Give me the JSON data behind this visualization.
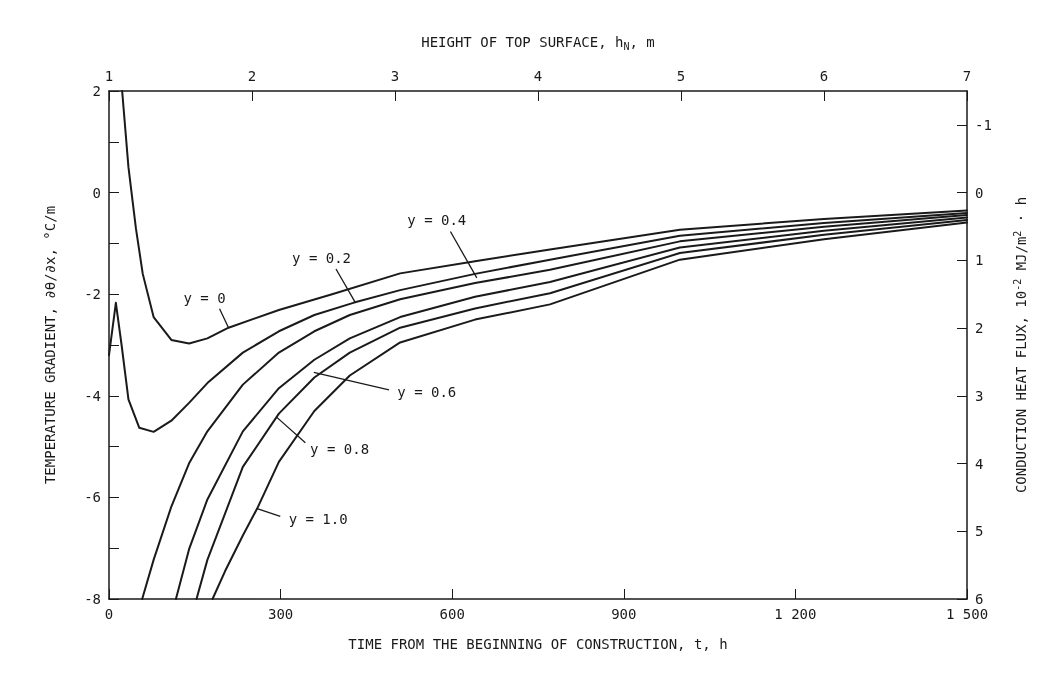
{
  "chart_data": {
    "type": "line",
    "xlabel": "TIME FROM THE BEGINNING OF CONSTRUCTION, t, h",
    "x2label": "HEIGHT OF TOP SURFACE, h$_{N}$, m",
    "ylabel": "TEMPERATURE GRADIENT, ∂θ/∂x, °C/m",
    "y2label": "CONDUCTION HEAT FLUX, 10$^{-2}$ MJ/m$^{2}$ · h",
    "xlim": [
      0,
      1500
    ],
    "xticks": [
      0,
      300,
      600,
      900,
      {
        "value": 1200,
        "label": "1 200"
      },
      {
        "value": 1500,
        "label": "1 500"
      }
    ],
    "x2lim": [
      1,
      7
    ],
    "x2ticks": [
      1,
      2,
      3,
      4,
      5,
      6,
      7
    ],
    "ylim": [
      -8,
      2
    ],
    "yticks": [
      -8,
      {
        "value": -7,
        "label": null
      },
      -6,
      {
        "value": -5,
        "label": null
      },
      -4,
      {
        "value": -3,
        "label": null
      },
      -2,
      {
        "value": -1,
        "label": null
      },
      0,
      {
        "value": 1,
        "label": null
      },
      2
    ],
    "y2lim": [
      6,
      -1.5
    ],
    "y2ticks": [
      -1,
      0,
      1,
      2,
      3,
      4,
      5,
      6
    ],
    "grid": false,
    "marker": "none",
    "line_style": "solid",
    "series": [
      {
        "color": "#1a1a1a",
        "x": [
          23,
          34,
          47,
          59,
          78,
          109,
          140,
          172,
          209,
          297,
          390,
          509,
          640,
          771,
          998,
          1250,
          1500
        ],
        "values": [
          2,
          0.5,
          -0.7,
          -1.6,
          -2.45,
          -2.9,
          -2.97,
          -2.87,
          -2.66,
          -2.31,
          -2.0,
          -1.59,
          -1.35,
          -1.12,
          -0.73,
          -0.52,
          -0.35
        ]
      },
      {
        "color": "#1a1a1a",
        "x": [
          0,
          12,
          22,
          34,
          53,
          78,
          109,
          140,
          172,
          234,
          297,
          359,
          427,
          509,
          640,
          771,
          998,
          1250,
          1500
        ],
        "values": [
          -3.2,
          -2.17,
          -3.0,
          -4.07,
          -4.63,
          -4.71,
          -4.49,
          -4.14,
          -3.75,
          -3.15,
          -2.73,
          -2.41,
          -2.17,
          -1.92,
          -1.6,
          -1.32,
          -0.85,
          -0.6,
          -0.4
        ]
      },
      {
        "color": "#1a1a1a",
        "x": [
          58,
          78,
          109,
          140,
          172,
          234,
          297,
          359,
          421,
          509,
          640,
          771,
          998,
          1250,
          1500
        ],
        "values": [
          -8,
          -7.23,
          -6.18,
          -5.33,
          -4.7,
          -3.78,
          -3.15,
          -2.73,
          -2.41,
          -2.1,
          -1.78,
          -1.52,
          -0.96,
          -0.67,
          -0.44
        ]
      },
      {
        "color": "#1a1a1a",
        "x": [
          117,
          140,
          172,
          234,
          297,
          359,
          421,
          509,
          640,
          771,
          998,
          1250,
          1500
        ],
        "values": [
          -8,
          -7.02,
          -6.04,
          -4.7,
          -3.85,
          -3.29,
          -2.87,
          -2.45,
          -2.05,
          -1.76,
          -1.08,
          -0.75,
          -0.49
        ]
      },
      {
        "color": "#1a1a1a",
        "x": [
          153,
          172,
          234,
          297,
          359,
          421,
          509,
          640,
          771,
          998,
          1250,
          1500
        ],
        "values": [
          -8,
          -7.23,
          -5.4,
          -4.35,
          -3.64,
          -3.15,
          -2.66,
          -2.28,
          -1.98,
          -1.19,
          -0.83,
          -0.54
        ]
      },
      {
        "color": "#1a1a1a",
        "x": [
          181,
          203,
          234,
          259,
          297,
          359,
          421,
          509,
          640,
          771,
          998,
          1250,
          1500
        ],
        "values": [
          -8,
          -7.45,
          -6.75,
          -6.22,
          -5.3,
          -4.3,
          -3.6,
          -2.95,
          -2.5,
          -2.2,
          -1.32,
          -0.92,
          -0.59
        ]
      }
    ],
    "annotations": [
      {
        "text": "y = 0",
        "x": 209,
        "y": -2.66
      },
      {
        "text": "y = 0.2",
        "x": 431,
        "y": -2.17
      },
      {
        "text": "y = 0.4",
        "x": 643,
        "y": -1.68
      },
      {
        "text": "y = 0.6",
        "x": 358,
        "y": -3.54
      },
      {
        "text": "y = 0.8",
        "x": 293,
        "y": -4.42
      },
      {
        "text": "y = 1.0",
        "x": 259,
        "y": -6.22
      }
    ]
  }
}
